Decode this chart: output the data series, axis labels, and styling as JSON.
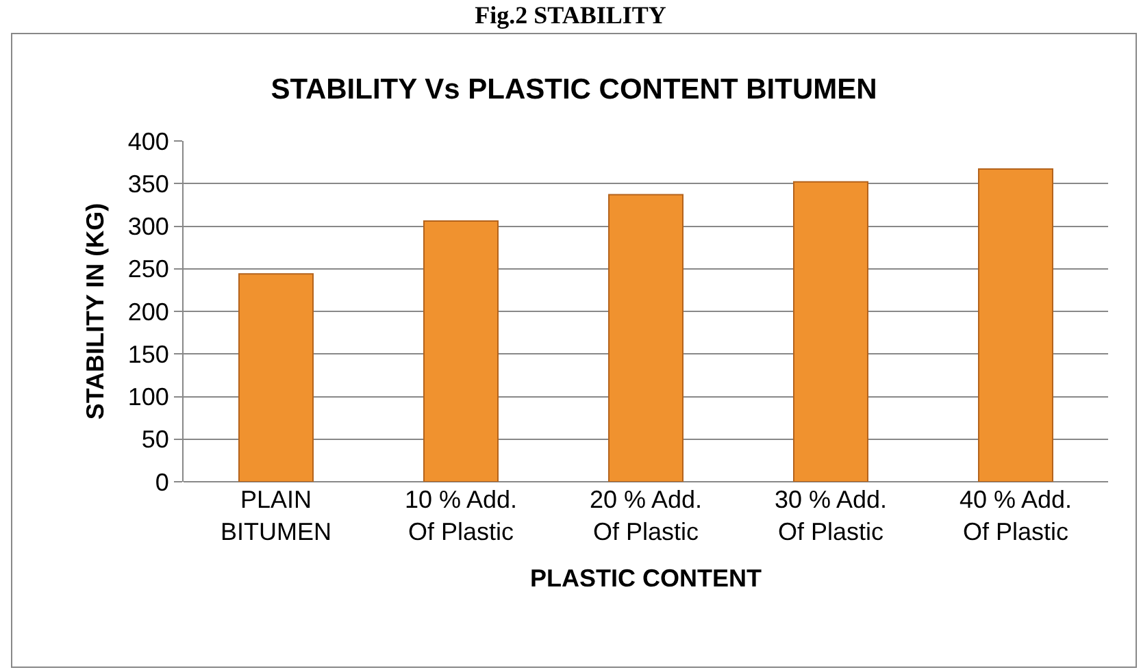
{
  "chart_data": {
    "type": "bar",
    "title": "STABILITY Vs PLASTIC CONTENT BITUMEN",
    "xlabel": "PLASTIC CONTENT",
    "ylabel": "STABILITY IN (KG)",
    "annotations": [
      "Fig.2 STABILITY"
    ],
    "categories": [
      "PLAIN BITUMEN",
      "10 % Add. Of Plastic",
      "20 % Add. Of Plastic",
      "30 % Add. Of Plastic",
      "40 % Add. Of Plastic"
    ],
    "values": [
      244,
      306,
      337,
      352,
      367
    ],
    "color": "#f0922f",
    "ylim": [
      0,
      400
    ],
    "yticks": [
      0,
      50,
      100,
      150,
      200,
      250,
      300,
      350,
      400
    ],
    "grid": "y"
  }
}
